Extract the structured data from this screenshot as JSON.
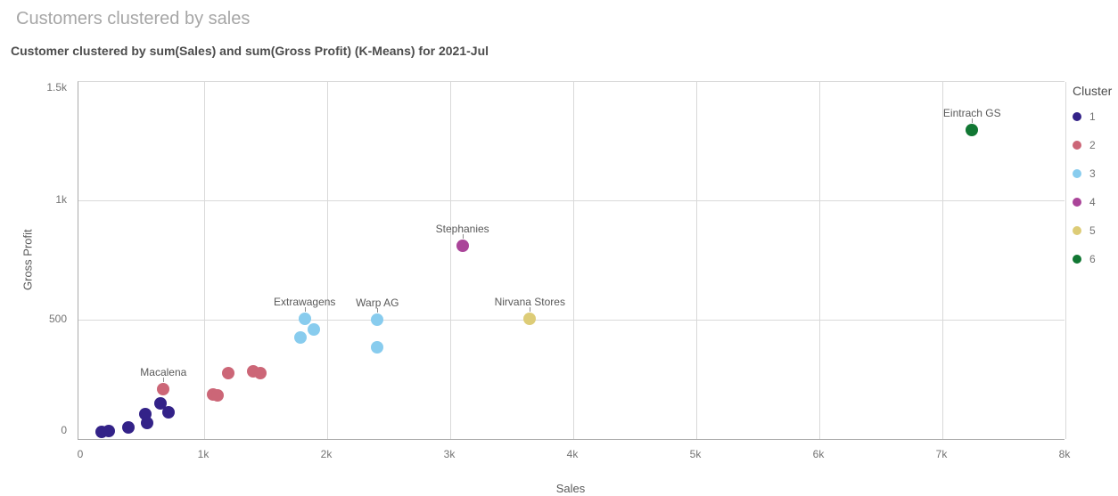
{
  "header": {
    "title": "Customers clustered by sales",
    "subtitle": "Customer clustered by sum(Sales) and sum(Gross Profit) (K-Means) for 2021-Jul"
  },
  "chart_data": {
    "type": "scatter",
    "title": "Customer clustered by sum(Sales) and sum(Gross Profit) (K-Means) for 2021-Jul",
    "xlabel": "Sales",
    "ylabel": "Gross Profit",
    "xlim": [
      0,
      8000
    ],
    "ylim": [
      0,
      1500
    ],
    "grid": true,
    "legend_title": "Cluster",
    "legend_position": "right",
    "x_ticks": [
      {
        "value": 0,
        "label": "0"
      },
      {
        "value": 1000,
        "label": "1k"
      },
      {
        "value": 2000,
        "label": "2k"
      },
      {
        "value": 3000,
        "label": "3k"
      },
      {
        "value": 4000,
        "label": "4k"
      },
      {
        "value": 5000,
        "label": "5k"
      },
      {
        "value": 6000,
        "label": "6k"
      },
      {
        "value": 7000,
        "label": "7k"
      },
      {
        "value": 8000,
        "label": "8k"
      }
    ],
    "y_ticks": [
      {
        "value": 0,
        "label": "0"
      },
      {
        "value": 500,
        "label": "500"
      },
      {
        "value": 1000,
        "label": "1k"
      },
      {
        "value": 1500,
        "label": "1.5k"
      }
    ],
    "series": [
      {
        "name": "1",
        "color": "#332288",
        "points": [
          {
            "x": 165,
            "y": 25
          },
          {
            "x": 225,
            "y": 30
          },
          {
            "x": 386,
            "y": 46
          },
          {
            "x": 520,
            "y": 101
          },
          {
            "x": 536,
            "y": 65
          },
          {
            "x": 645,
            "y": 146
          },
          {
            "x": 712,
            "y": 109
          }
        ]
      },
      {
        "name": "2",
        "color": "#cc6677",
        "points": [
          {
            "x": 669,
            "y": 208,
            "label": "Macalena"
          },
          {
            "x": 1072,
            "y": 183
          },
          {
            "x": 1109,
            "y": 181
          },
          {
            "x": 1196,
            "y": 275
          },
          {
            "x": 1401,
            "y": 280
          },
          {
            "x": 1454,
            "y": 275
          }
        ]
      },
      {
        "name": "3",
        "color": "#88ccee",
        "points": [
          {
            "x": 1780,
            "y": 424
          },
          {
            "x": 1817,
            "y": 502,
            "label": "Extrawagens"
          },
          {
            "x": 1889,
            "y": 456
          },
          {
            "x": 2404,
            "y": 384
          },
          {
            "x": 2408,
            "y": 500,
            "label": "Warp AG"
          }
        ]
      },
      {
        "name": "4",
        "color": "#aa4499",
        "points": [
          {
            "x": 3099,
            "y": 811,
            "label": "Stephanies"
          }
        ]
      },
      {
        "name": "5",
        "color": "#ddcc77",
        "points": [
          {
            "x": 3647,
            "y": 502,
            "label": "Nirvana Stores"
          }
        ]
      },
      {
        "name": "6",
        "color": "#117733",
        "points": [
          {
            "x": 7241,
            "y": 1299,
            "label": "Eintrach GS"
          }
        ]
      }
    ]
  }
}
